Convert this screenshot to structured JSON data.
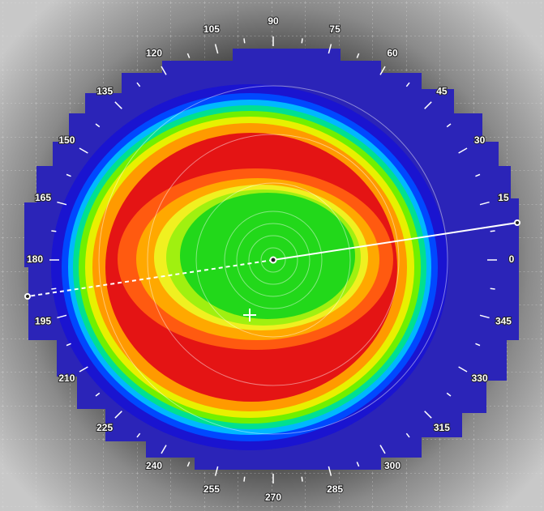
{
  "angles": [
    0,
    15,
    30,
    45,
    60,
    75,
    90,
    105,
    120,
    135,
    150,
    165,
    180,
    195,
    210,
    225,
    240,
    255,
    270,
    285,
    300,
    315,
    330,
    345
  ]
}
